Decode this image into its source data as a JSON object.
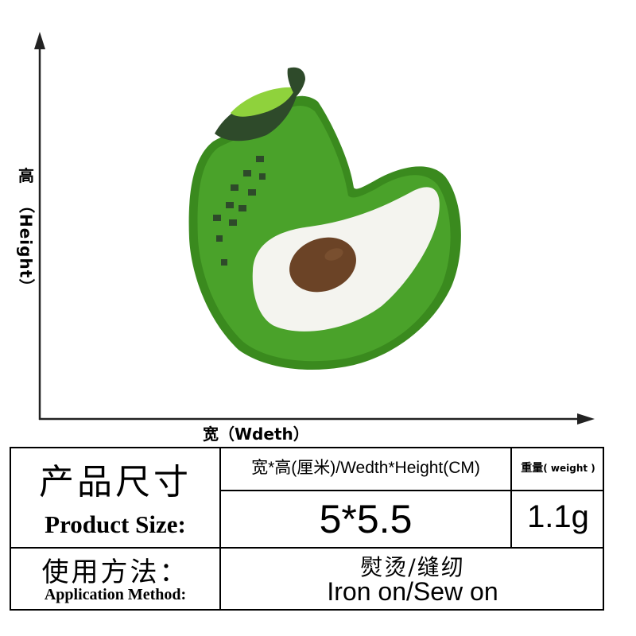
{
  "dimension_diagram": {
    "height_label_zh": "高",
    "height_label_en": "（Height）",
    "width_label": "宽（Wdeth）"
  },
  "product": {
    "depicts": "avocado",
    "colors": {
      "outline": "#3a8a1e",
      "body": "#4aa22a",
      "leaf_light": "#8fd23c",
      "leaf_dark": "#2e4a2a",
      "flesh": "#f4f4ef",
      "pit": "#6b4326"
    }
  },
  "spec_table": {
    "product_size_zh": "产品尺寸",
    "product_size_en": "Product Size:",
    "dimension_header": "宽*高(厘米)/Wedth*Height(CM)",
    "dimension_value": "5*5.5",
    "weight_header_zh": "重量",
    "weight_header_en": "( weight )",
    "weight_value": "1.1g",
    "method_zh": "使用方法：",
    "method_en": "Application Method:",
    "method_value_zh": "熨烫/缝纫",
    "method_value_en": "Iron on/Sew on"
  }
}
